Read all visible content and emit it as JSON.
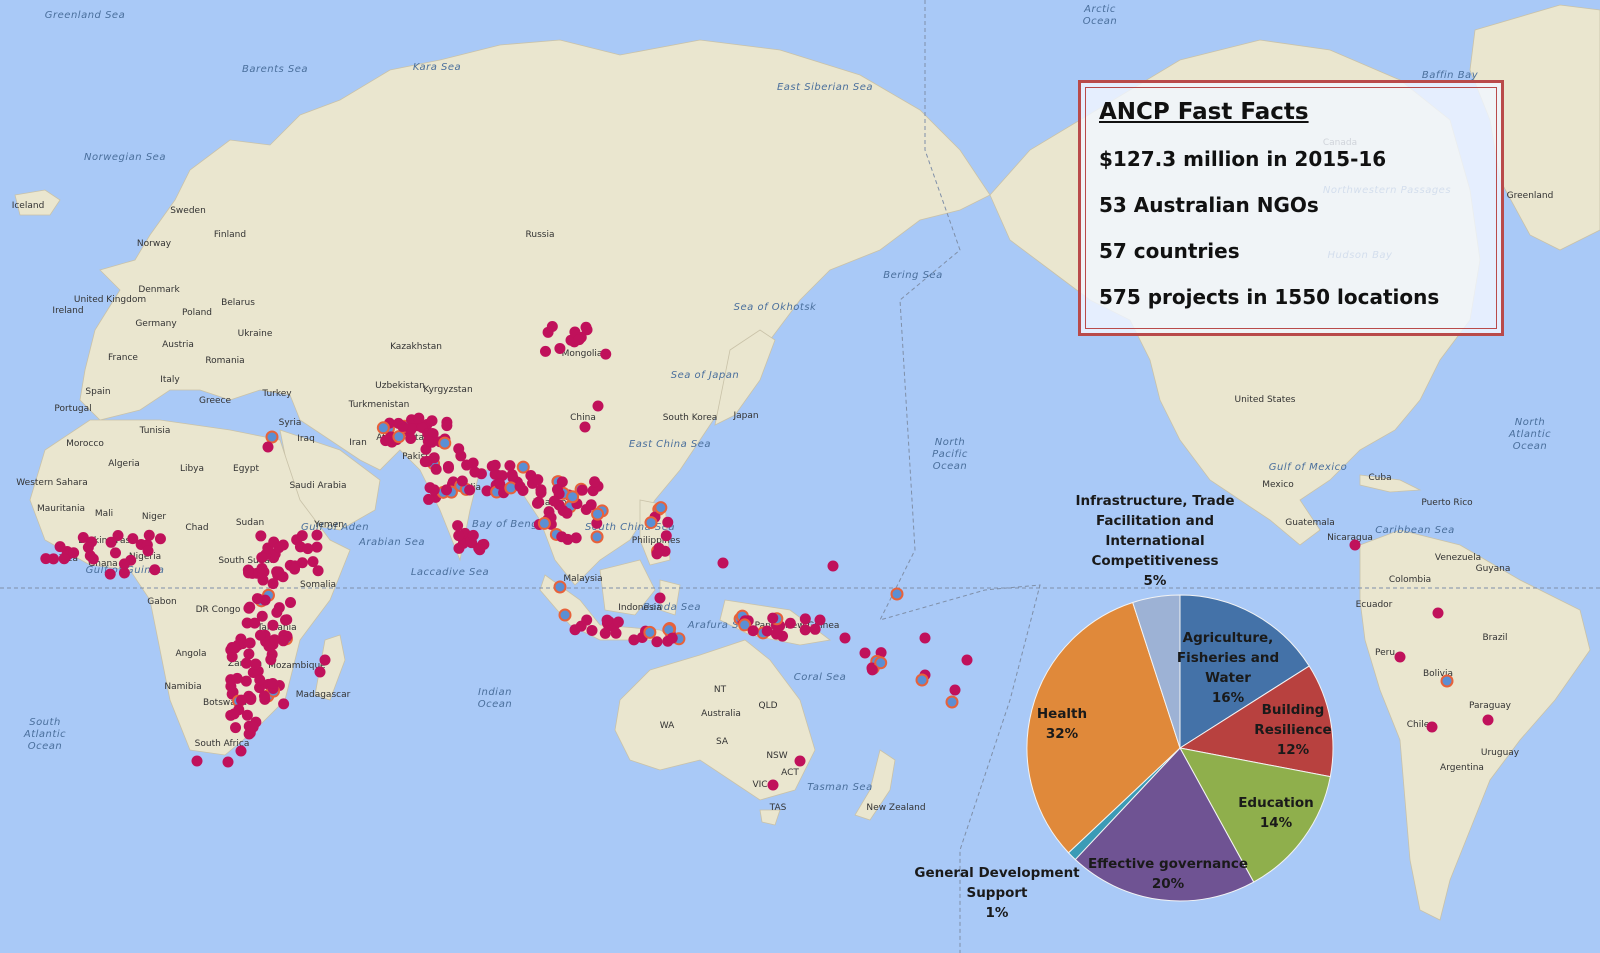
{
  "fast_facts": {
    "title": "ANCP Fast Facts",
    "items": [
      "$127.3 million in 2015-16",
      "53 Australian NGOs",
      "57 countries",
      "575 projects in 1550 locations"
    ]
  },
  "pie_chart": {
    "slices": [
      {
        "label": "Agriculture, Fisheries and Water",
        "pct": 16,
        "color": "#4472a8"
      },
      {
        "label": "Building Resilience",
        "pct": 12,
        "color": "#b8413f"
      },
      {
        "label": "Education",
        "pct": 14,
        "color": "#8faf4c"
      },
      {
        "label": "Effective governance",
        "pct": 20,
        "color": "#6f5393"
      },
      {
        "label": "General Development Support",
        "pct": 1,
        "color": "#3b9bb6"
      },
      {
        "label": "Health",
        "pct": 32,
        "color": "#e0893a"
      },
      {
        "label": "Infrastructure, Trade Facilitation and International Competitiveness",
        "pct": 5,
        "color": "#9db2d5"
      }
    ]
  },
  "map": {
    "ocean_color": "#a9c9f7",
    "land_color": "#eae6cf",
    "marker_color": "#c0115b",
    "oceans": [
      "Arctic Ocean",
      "North Pacific Ocean",
      "North Atlantic Ocean",
      "South Atlantic Ocean",
      "Indian Ocean"
    ],
    "seas": [
      "Greenland Sea",
      "Barents Sea",
      "Kara Sea",
      "East Siberian Sea",
      "Norwegian Sea",
      "Sea of Okhotsk",
      "Bering Sea",
      "Sea of Japan",
      "East China Sea",
      "South China Sea",
      "Bay of Bengal",
      "Arabian Sea",
      "Gulf of Aden",
      "Gulf of Guinea",
      "Banda Sea",
      "Arafura Sea",
      "Coral Sea",
      "Tasman Sea",
      "Gulf of Mexico",
      "Caribbean Sea",
      "Baffin Bay",
      "Hudson Bay",
      "Laccadive Sea",
      "Northwestern Passages"
    ],
    "countries": [
      "Iceland",
      "Greenland",
      "Sweden",
      "Finland",
      "Norway",
      "Russia",
      "United Kingdom",
      "Ireland",
      "Denmark",
      "Belarus",
      "Poland",
      "Germany",
      "Ukraine",
      "France",
      "Austria",
      "Romania",
      "Kazakhstan",
      "Mongolia",
      "Spain",
      "Portugal",
      "Italy",
      "Greece",
      "Turkey",
      "Uzbekistan",
      "Kyrgyzstan",
      "Turkmenistan",
      "China",
      "South Korea",
      "Japan",
      "Tunisia",
      "Syria",
      "Iraq",
      "Iran",
      "Afghanistan",
      "Pakistan",
      "India",
      "Morocco",
      "Algeria",
      "Libya",
      "Egypt",
      "Saudi Arabia",
      "Western Sahara",
      "Mauritania",
      "Mali",
      "Niger",
      "Chad",
      "Sudan",
      "Yemen",
      "Burkina Faso",
      "Guinea",
      "Ghana",
      "Nigeria",
      "South Sudan",
      "Somalia",
      "Gabon",
      "DR Congo",
      "Tanzania",
      "Angola",
      "Zambia",
      "Mozambique",
      "Namibia",
      "Botswana",
      "Madagascar",
      "South Africa",
      "Thailand",
      "Philippines",
      "Malaysia",
      "Indonesia",
      "Papua New Guinea",
      "Australia",
      "New Zealand",
      "United States",
      "Canada",
      "Mexico",
      "Cuba",
      "Puerto Rico",
      "Guatemala",
      "Nicaragua",
      "Venezuela",
      "Guyana",
      "Colombia",
      "Ecuador",
      "Peru",
      "Brazil",
      "Bolivia",
      "Paraguay",
      "Chile",
      "Argentina",
      "Uruguay"
    ],
    "states": [
      "WA",
      "NT",
      "QLD",
      "SA",
      "NSW",
      "ACT",
      "VIC",
      "TAS"
    ]
  }
}
